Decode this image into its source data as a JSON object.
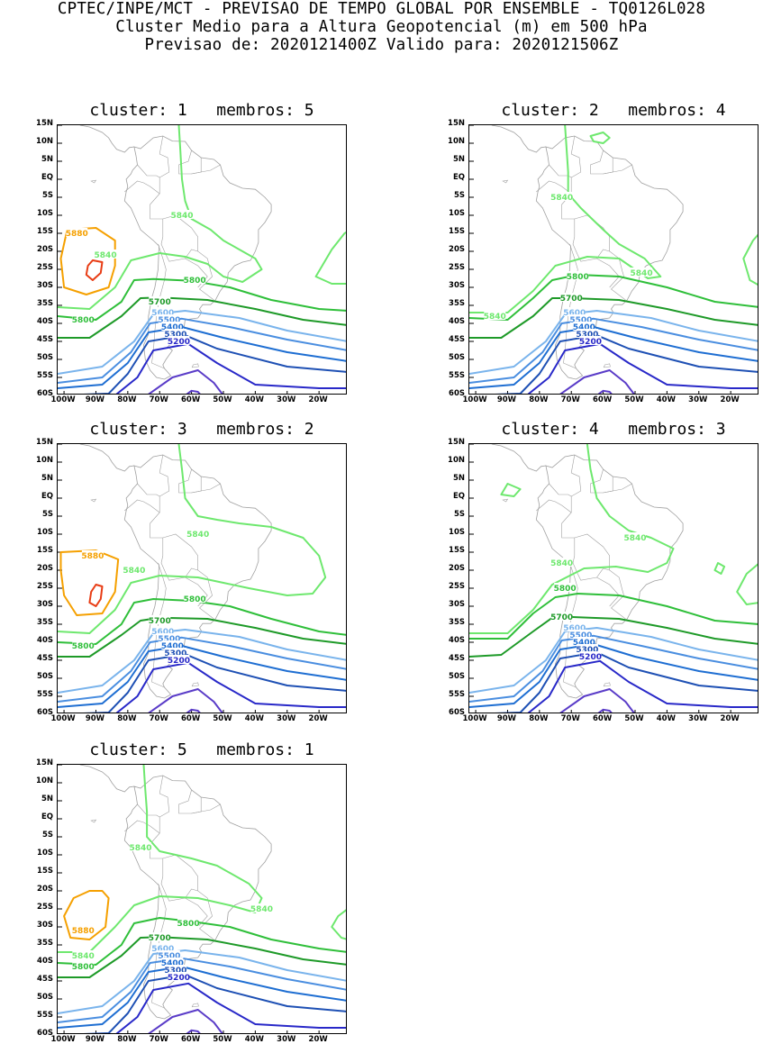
{
  "header": {
    "line1": "CPTEC/INPE/MCT - PREVISAO DE TEMPO GLOBAL POR ENSEMBLE - TQ0126L028",
    "line2": "Cluster Medio para a Altura Geopotencial (m) em 500 hPa",
    "line3": "Previsao de: 2020121400Z   Valido para: 2020121506Z"
  },
  "axes": {
    "lat_labels": [
      "15N",
      "10N",
      "5N",
      "EQ",
      "5S",
      "10S",
      "15S",
      "20S",
      "25S",
      "30S",
      "35S",
      "40S",
      "45S",
      "50S",
      "55S",
      "60S"
    ],
    "lon_labels": [
      "100W",
      "90W",
      "80W",
      "70W",
      "60W",
      "50W",
      "40W",
      "30W",
      "20W"
    ]
  },
  "colors": {
    "c5200": "#2828c8",
    "c5300": "#1e50b4",
    "c5400": "#1e6ed2",
    "c5500": "#4a8ee0",
    "c5600": "#7ab4ec",
    "c5700": "#1e9a28",
    "c5800": "#2fbf3a",
    "c5840": "#6ee86e",
    "c5880": "#f5a000",
    "c5920": "#e83c14",
    "land": "#a0a0a0"
  },
  "panels": [
    {
      "title": "cluster: 1   membros: 5",
      "labels": [
        {
          "text": "5880",
          "c": "c5880",
          "lon": -96,
          "lat": -15
        },
        {
          "text": "5840",
          "c": "c5840",
          "lon": -63,
          "lat": -10
        },
        {
          "text": "5840",
          "c": "c5840",
          "lon": -87,
          "lat": -21
        },
        {
          "text": "5800",
          "c": "c5800",
          "lon": -59,
          "lat": -28
        },
        {
          "text": "5800",
          "c": "c5800",
          "lon": -94,
          "lat": -39
        },
        {
          "text": "5700",
          "c": "c5700",
          "lon": -70,
          "lat": -34
        },
        {
          "text": "5600",
          "c": "c5600",
          "lon": -69,
          "lat": -37
        },
        {
          "text": "5500",
          "c": "c5500",
          "lon": -67,
          "lat": -39
        },
        {
          "text": "5400",
          "c": "c5400",
          "lon": -66,
          "lat": -41
        },
        {
          "text": "5300",
          "c": "c5300",
          "lon": -65,
          "lat": -43
        },
        {
          "text": "5200",
          "c": "c5200",
          "lon": -64,
          "lat": -45
        }
      ]
    },
    {
      "title": "cluster: 2   membros: 4",
      "labels": [
        {
          "text": "5840",
          "c": "c5840",
          "lon": -73,
          "lat": -5
        },
        {
          "text": "5840",
          "c": "c5840",
          "lon": -48,
          "lat": -26
        },
        {
          "text": "5840",
          "c": "c5840",
          "lon": -94,
          "lat": -38
        },
        {
          "text": "5800",
          "c": "c5800",
          "lon": -68,
          "lat": -27
        },
        {
          "text": "5700",
          "c": "c5700",
          "lon": -70,
          "lat": -33
        },
        {
          "text": "5600",
          "c": "c5600",
          "lon": -69,
          "lat": -37
        },
        {
          "text": "5500",
          "c": "c5500",
          "lon": -67,
          "lat": -39
        },
        {
          "text": "5400",
          "c": "c5400",
          "lon": -66,
          "lat": -41
        },
        {
          "text": "5300",
          "c": "c5300",
          "lon": -65,
          "lat": -43
        },
        {
          "text": "5200",
          "c": "c5200",
          "lon": -64,
          "lat": -45
        }
      ]
    },
    {
      "title": "cluster: 3   membros: 2",
      "labels": [
        {
          "text": "5880",
          "c": "c5880",
          "lon": -91,
          "lat": -16
        },
        {
          "text": "5840",
          "c": "c5840",
          "lon": -58,
          "lat": -10
        },
        {
          "text": "5840",
          "c": "c5840",
          "lon": -78,
          "lat": -20
        },
        {
          "text": "5800",
          "c": "c5800",
          "lon": -59,
          "lat": -28
        },
        {
          "text": "5800",
          "c": "c5800",
          "lon": -94,
          "lat": -41
        },
        {
          "text": "5700",
          "c": "c5700",
          "lon": -70,
          "lat": -34
        },
        {
          "text": "5600",
          "c": "c5600",
          "lon": -69,
          "lat": -37
        },
        {
          "text": "5500",
          "c": "c5500",
          "lon": -67,
          "lat": -39
        },
        {
          "text": "5400",
          "c": "c5400",
          "lon": -66,
          "lat": -41
        },
        {
          "text": "5300",
          "c": "c5300",
          "lon": -65,
          "lat": -43
        },
        {
          "text": "5200",
          "c": "c5200",
          "lon": -64,
          "lat": -45
        }
      ]
    },
    {
      "title": "cluster: 4   membros: 3",
      "labels": [
        {
          "text": "5840",
          "c": "c5840",
          "lon": -50,
          "lat": -11
        },
        {
          "text": "5840",
          "c": "c5840",
          "lon": -73,
          "lat": -18
        },
        {
          "text": "5800",
          "c": "c5800",
          "lon": -72,
          "lat": -25
        },
        {
          "text": "5700",
          "c": "c5700",
          "lon": -73,
          "lat": -33
        },
        {
          "text": "5600",
          "c": "c5600",
          "lon": -69,
          "lat": -36
        },
        {
          "text": "5500",
          "c": "c5500",
          "lon": -67,
          "lat": -38
        },
        {
          "text": "5400",
          "c": "c5400",
          "lon": -66,
          "lat": -40
        },
        {
          "text": "5300",
          "c": "c5300",
          "lon": -65,
          "lat": -42
        },
        {
          "text": "5200",
          "c": "c5200",
          "lon": -64,
          "lat": -44
        }
      ]
    },
    {
      "title": "cluster: 5   membros: 1",
      "labels": [
        {
          "text": "5840",
          "c": "c5840",
          "lon": -76,
          "lat": -8
        },
        {
          "text": "5840",
          "c": "c5840",
          "lon": -38,
          "lat": -25
        },
        {
          "text": "5840",
          "c": "c5840",
          "lon": -94,
          "lat": -38
        },
        {
          "text": "5880",
          "c": "c5880",
          "lon": -94,
          "lat": -31
        },
        {
          "text": "5800",
          "c": "c5800",
          "lon": -61,
          "lat": -29
        },
        {
          "text": "5800",
          "c": "c5800",
          "lon": -94,
          "lat": -41
        },
        {
          "text": "5700",
          "c": "c5700",
          "lon": -70,
          "lat": -33
        },
        {
          "text": "5600",
          "c": "c5600",
          "lon": -69,
          "lat": -36
        },
        {
          "text": "5500",
          "c": "c5500",
          "lon": -67,
          "lat": -38
        },
        {
          "text": "5400",
          "c": "c5400",
          "lon": -66,
          "lat": -40
        },
        {
          "text": "5300",
          "c": "c5300",
          "lon": -65,
          "lat": -42
        },
        {
          "text": "5200",
          "c": "c5200",
          "lon": -64,
          "lat": -44
        }
      ]
    }
  ]
}
